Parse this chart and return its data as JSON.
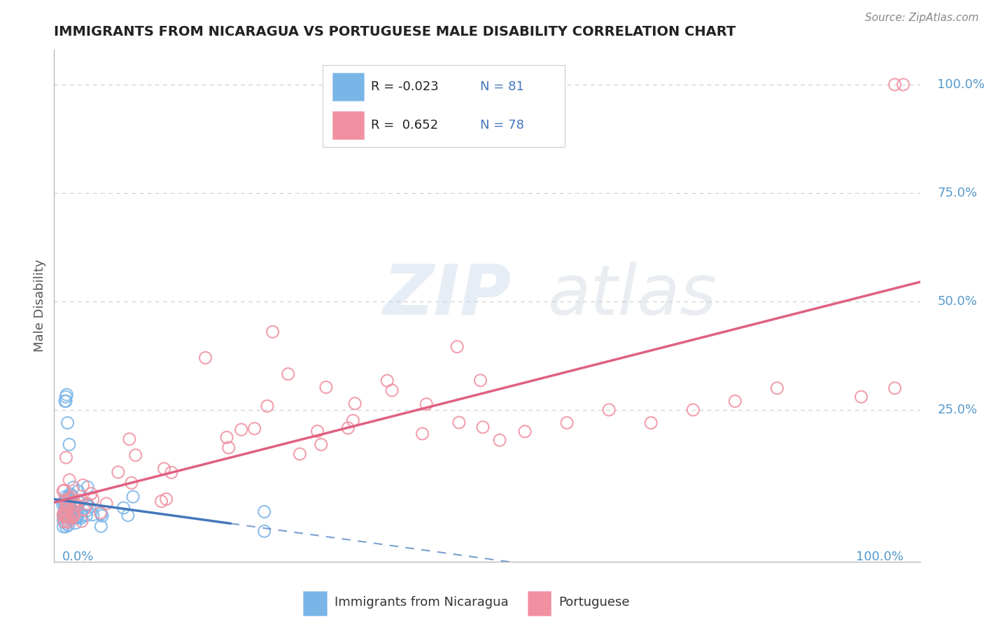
{
  "title": "IMMIGRANTS FROM NICARAGUA VS PORTUGUESE MALE DISABILITY CORRELATION CHART",
  "source": "Source: ZipAtlas.com",
  "ylabel": "Male Disability",
  "R1": -0.023,
  "N1": 81,
  "R2": 0.652,
  "N2": 78,
  "s1_color": "#7ab5e8",
  "s2_color": "#f090a0",
  "trendline1_color": "#4477bb",
  "trendline2_color": "#e06080",
  "watermark_color": "#ccd8e8",
  "bg_color": "#ffffff",
  "grid_color": "#cccccc",
  "title_color": "#222222",
  "axis_tick_color": "#5599cc",
  "right_label_color": "#5599cc",
  "legend_border_color": "#cccccc",
  "legend_text_color": "#4477bb",
  "bottom_legend_text_color": "#333333"
}
